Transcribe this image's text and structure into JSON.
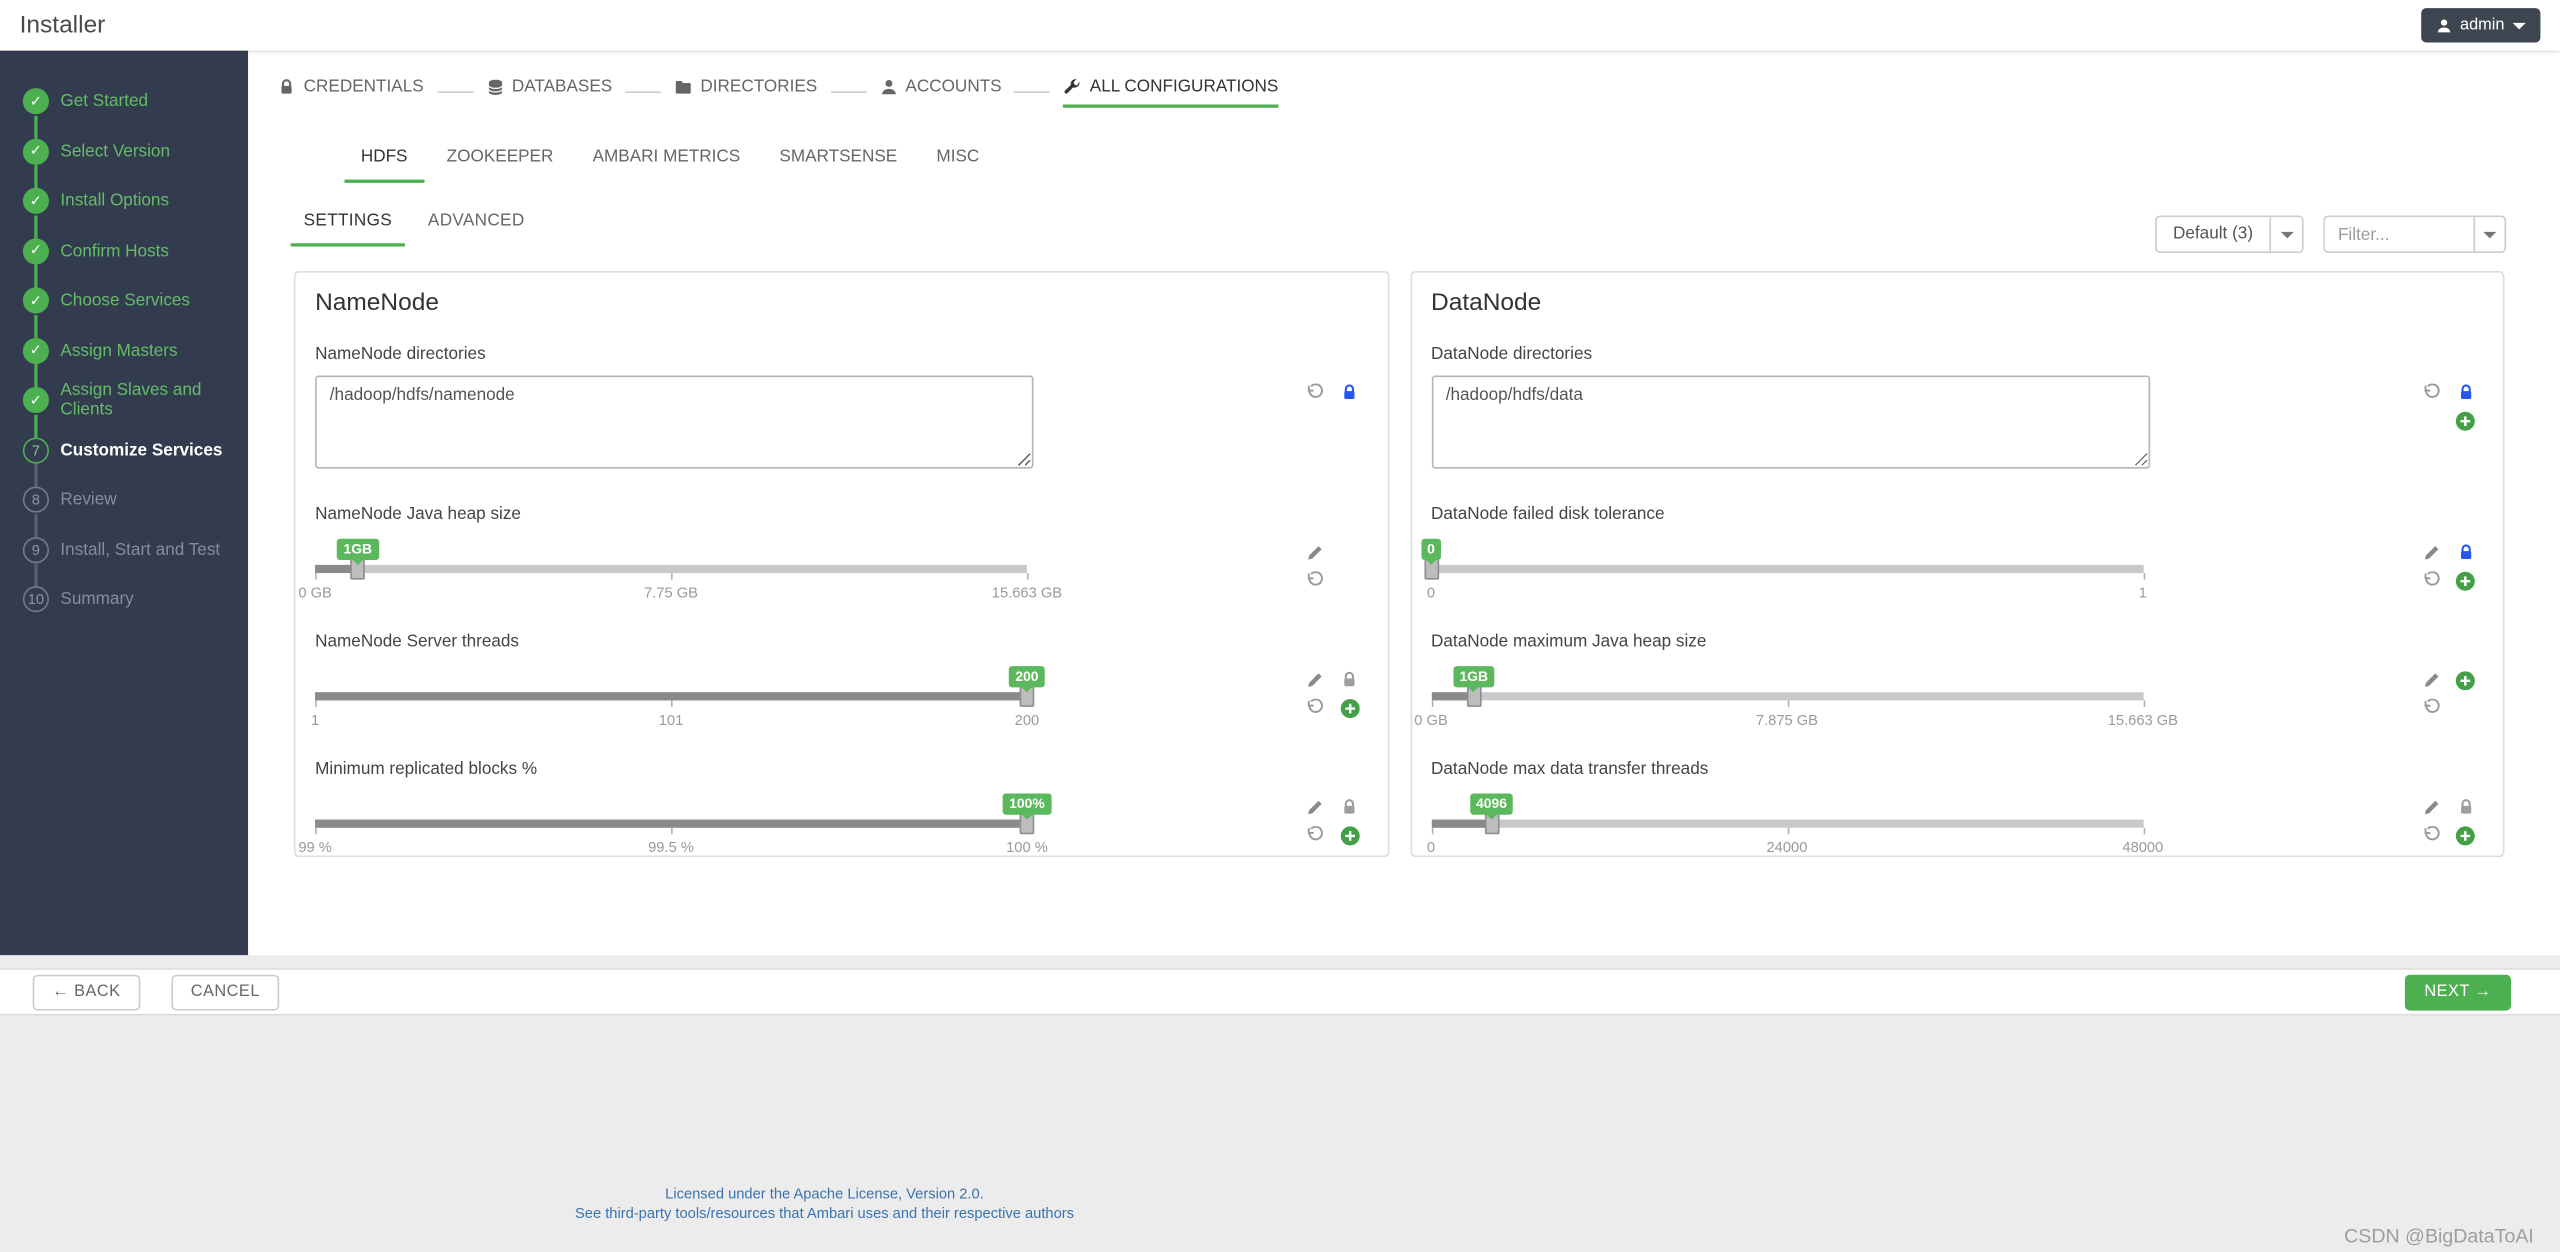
{
  "topbar": {
    "title": "Installer",
    "user_menu": "admin"
  },
  "sidebar": {
    "steps": [
      {
        "label": "Get Started",
        "state": "done"
      },
      {
        "label": "Select Version",
        "state": "done"
      },
      {
        "label": "Install Options",
        "state": "done"
      },
      {
        "label": "Confirm Hosts",
        "state": "done"
      },
      {
        "label": "Choose Services",
        "state": "done"
      },
      {
        "label": "Assign Masters",
        "state": "done"
      },
      {
        "label": "Assign Slaves and Clients",
        "state": "done"
      },
      {
        "label": "Customize Services",
        "state": "active",
        "num": "7"
      },
      {
        "label": "Review",
        "state": "pending",
        "num": "8"
      },
      {
        "label": "Install, Start and Test",
        "state": "pending",
        "num": "9"
      },
      {
        "label": "Summary",
        "state": "pending",
        "num": "10"
      }
    ]
  },
  "wizard_nav": {
    "items": [
      {
        "label": "CREDENTIALS",
        "icon": "lock-icon",
        "active": false
      },
      {
        "label": "DATABASES",
        "icon": "database-icon",
        "active": false
      },
      {
        "label": "DIRECTORIES",
        "icon": "folder-icon",
        "active": false
      },
      {
        "label": "ACCOUNTS",
        "icon": "user-icon",
        "active": false
      },
      {
        "label": "ALL CONFIGURATIONS",
        "icon": "wrench-icon",
        "active": true
      }
    ]
  },
  "service_tabs": [
    {
      "label": "HDFS",
      "active": true
    },
    {
      "label": "ZOOKEEPER",
      "active": false
    },
    {
      "label": "AMBARI METRICS",
      "active": false
    },
    {
      "label": "SMARTSENSE",
      "active": false
    },
    {
      "label": "MISC",
      "active": false
    }
  ],
  "toolbar": {
    "group_label": "Default (3)",
    "filter_placeholder": "Filter..."
  },
  "section_tabs": [
    {
      "label": "SETTINGS",
      "active": true
    },
    {
      "label": "ADVANCED",
      "active": false
    }
  ],
  "panels": [
    {
      "title": "NameNode",
      "fields": [
        {
          "type": "textarea",
          "label": "NameNode directories",
          "value": "/hadoop/hdfs/namenode",
          "icons": [
            "undo",
            "lock-blue"
          ]
        },
        {
          "type": "slider",
          "label": "NameNode Java heap size",
          "badge": "1GB",
          "percent": 6,
          "ticks": [
            {
              "label": "0 GB",
              "pos": 0
            },
            {
              "label": "7.75 GB",
              "pos": 50
            },
            {
              "label": "15.663 GB",
              "pos": 100
            }
          ],
          "icons": [
            "pencil",
            "undo"
          ]
        },
        {
          "type": "slider",
          "label": "NameNode Server threads",
          "badge": "200",
          "percent": 100,
          "ticks": [
            {
              "label": "1",
              "pos": 0
            },
            {
              "label": "101",
              "pos": 50
            },
            {
              "label": "200",
              "pos": 100
            }
          ],
          "icons": [
            "pencil",
            "lock-gray",
            "undo",
            "plus"
          ]
        },
        {
          "type": "slider",
          "label": "Minimum replicated blocks %",
          "badge": "100%",
          "percent": 100,
          "ticks": [
            {
              "label": "99 %",
              "pos": 0
            },
            {
              "label": "99.5 %",
              "pos": 50
            },
            {
              "label": "100 %",
              "pos": 100
            }
          ],
          "icons": [
            "pencil",
            "lock-gray",
            "undo",
            "plus"
          ]
        }
      ]
    },
    {
      "title": "DataNode",
      "fields": [
        {
          "type": "textarea",
          "label": "DataNode directories",
          "value": "/hadoop/hdfs/data",
          "icons": [
            "undo",
            "lock-blue",
            "plus"
          ]
        },
        {
          "type": "slider",
          "label": "DataNode failed disk tolerance",
          "badge": "0",
          "percent": 0,
          "ticks": [
            {
              "label": "0",
              "pos": 0
            },
            {
              "label": "1",
              "pos": 100
            }
          ],
          "icons": [
            "pencil",
            "lock-blue",
            "undo",
            "plus"
          ]
        },
        {
          "type": "slider",
          "label": "DataNode maximum Java heap size",
          "badge": "1GB",
          "percent": 6,
          "ticks": [
            {
              "label": "0 GB",
              "pos": 0
            },
            {
              "label": "7.875 GB",
              "pos": 50
            },
            {
              "label": "15.663 GB",
              "pos": 100
            }
          ],
          "icons": [
            "pencil",
            "plus",
            "undo"
          ]
        },
        {
          "type": "slider",
          "label": "DataNode max data transfer threads",
          "badge": "4096",
          "percent": 8.5,
          "ticks": [
            {
              "label": "0",
              "pos": 0
            },
            {
              "label": "24000",
              "pos": 50
            },
            {
              "label": "48000",
              "pos": 100
            }
          ],
          "icons": [
            "pencil",
            "lock-gray",
            "undo",
            "plus"
          ]
        }
      ]
    }
  ],
  "actions": {
    "back": "← BACK",
    "cancel": "CANCEL",
    "next": "NEXT →"
  },
  "footer": {
    "license_line1": "Licensed under the Apache License, Version 2.0.",
    "license_line2": "See third-party tools/resources that Ambari uses and their respective authors",
    "watermark": "CSDN @BigDataToAI"
  },
  "glyphs": {
    "check": "✓"
  },
  "colors": {
    "accent_green": "#4caf50",
    "badge_green": "#5cb85c",
    "lock_blue": "#2456f0",
    "sidebar_bg": "#323c4e",
    "link_blue": "#3b73af"
  }
}
